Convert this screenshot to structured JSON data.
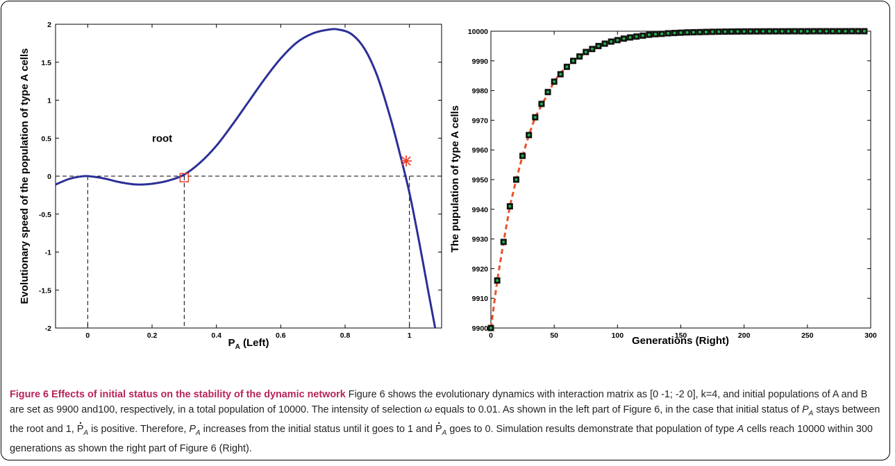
{
  "chart_data": [
    {
      "type": "line",
      "xlabel": "P",
      "xlabel_sub": "A",
      "xlabel_suffix": " (Left)",
      "ylabel": "Evolutionary speed of the population of type A cells",
      "xlim": [
        -0.1,
        1.1
      ],
      "ylim": [
        -2,
        2
      ],
      "xticks": [
        "0",
        "0.2",
        "0.4",
        "0.6",
        "0.8",
        "1"
      ],
      "xtick_values": [
        0,
        0.2,
        0.4,
        0.6,
        0.8,
        1
      ],
      "yticks": [
        "2",
        "1.5",
        "1",
        "0.5",
        "0",
        "-0.5",
        "-1",
        "-1.5",
        "-2"
      ],
      "ytick_values": [
        2,
        1.5,
        1,
        0.5,
        0,
        -0.5,
        -1,
        -1.5,
        -2
      ],
      "curve": {
        "x": [
          -0.1,
          -0.06,
          -0.03,
          0,
          0.05,
          0.1,
          0.15,
          0.2,
          0.25,
          0.3,
          0.35,
          0.4,
          0.45,
          0.5,
          0.55,
          0.6,
          0.65,
          0.7,
          0.75,
          0.78,
          0.82,
          0.86,
          0.9,
          0.94,
          0.97,
          1.0,
          1.03,
          1.06,
          1.08
        ],
        "y": [
          -0.11,
          -0.04,
          -0.01,
          0,
          -0.03,
          -0.08,
          -0.11,
          -0.1,
          -0.06,
          0.02,
          0.18,
          0.4,
          0.68,
          0.98,
          1.28,
          1.55,
          1.76,
          1.88,
          1.93,
          1.93,
          1.87,
          1.68,
          1.32,
          0.78,
          0.3,
          -0.22,
          -0.86,
          -1.55,
          -2.0
        ],
        "color": "#2b2f97"
      },
      "markers": [
        {
          "type": "square",
          "x": 0.3,
          "y": -0.02,
          "color": "#e8412a"
        },
        {
          "type": "star",
          "x": 0.99,
          "y": 0.2,
          "color": "#e8412a"
        }
      ],
      "dashed_vlines": [
        0,
        0.3,
        1
      ],
      "dashed_hline": 0,
      "annotation": {
        "text": "root",
        "x": 0.2,
        "y": 0.45
      }
    },
    {
      "type": "scatter",
      "xlabel": "Generations (Right)",
      "ylabel": "The pupulation of type A cells",
      "xlim": [
        0,
        300
      ],
      "ylim": [
        9900,
        10000
      ],
      "xticks": [
        "0",
        "50",
        "100",
        "150",
        "200",
        "250",
        "300"
      ],
      "xtick_values": [
        0,
        50,
        100,
        150,
        200,
        250,
        300
      ],
      "yticks": [
        "10000",
        "9990",
        "9980",
        "9970",
        "9960",
        "9950",
        "9940",
        "9930",
        "9920",
        "9910",
        "9900"
      ],
      "ytick_values": [
        10000,
        9990,
        9980,
        9970,
        9960,
        9950,
        9940,
        9930,
        9920,
        9910,
        9900
      ],
      "series": [
        {
          "type": "line-dashed",
          "color": "#e8522a",
          "x": [
            0,
            5,
            10,
            15,
            20,
            25,
            30,
            35,
            40,
            45,
            50,
            55,
            60,
            65,
            70,
            75,
            80,
            90,
            100,
            120,
            140
          ],
          "y": [
            9900,
            9916,
            9929,
            9941,
            9950,
            9958,
            9965,
            9971,
            9975,
            9979,
            9983,
            9986,
            9988,
            9990,
            9991,
            9993,
            9994,
            9996,
            9997,
            9998,
            9999
          ]
        },
        {
          "type": "square-markers",
          "color": "#111111",
          "x": [
            0,
            5,
            10,
            15,
            20,
            25,
            30,
            35,
            40,
            45,
            50,
            55,
            60,
            65,
            70,
            75,
            80,
            85,
            90,
            95,
            100,
            105,
            110,
            115,
            120,
            125,
            130,
            135,
            140,
            145,
            150,
            155,
            160,
            165,
            170,
            175,
            180,
            185,
            190,
            195,
            200,
            205,
            210,
            215,
            220,
            225,
            230,
            235,
            240,
            245,
            250,
            255,
            260,
            265,
            270,
            275,
            280,
            285,
            290,
            295
          ],
          "y": [
            9900,
            9916,
            9929,
            9941,
            9950,
            9958,
            9965,
            9971,
            9975.5,
            9979.5,
            9983,
            9985.5,
            9988,
            9990,
            9991.5,
            9993,
            9994,
            9995,
            9995.8,
            9996.5,
            9997,
            9997.5,
            9997.9,
            9998.2,
            9998.5,
            9998.8,
            9999,
            9999.1,
            9999.3,
            9999.4,
            9999.5,
            9999.6,
            9999.65,
            9999.7,
            9999.75,
            9999.8,
            9999.83,
            9999.86,
            9999.88,
            9999.9,
            9999.92,
            9999.93,
            9999.94,
            9999.95,
            9999.96,
            9999.96,
            9999.97,
            9999.97,
            9999.98,
            9999.98,
            9999.98,
            9999.99,
            9999.99,
            9999.99,
            9999.99,
            9999.99,
            10000,
            10000,
            10000,
            10000
          ]
        },
        {
          "type": "dot-markers",
          "color": "#1fb24a",
          "x": [
            0,
            5,
            10,
            15,
            20,
            25,
            30,
            35,
            40,
            45,
            50,
            55,
            60,
            65,
            70,
            75,
            80,
            85,
            90,
            95,
            100,
            105,
            110,
            115,
            120,
            125,
            130,
            135,
            140,
            145,
            150,
            155,
            160,
            165,
            170,
            175,
            180,
            185,
            190,
            195,
            200,
            205,
            210,
            215,
            220,
            225,
            230,
            235,
            240,
            245,
            250,
            255,
            260,
            265,
            270,
            275,
            280,
            285,
            290,
            295
          ],
          "y": [
            9900,
            9916,
            9929,
            9941,
            9950,
            9958,
            9965,
            9971,
            9975.5,
            9979.5,
            9983,
            9985.5,
            9988,
            9990,
            9991.5,
            9993,
            9994,
            9995,
            9995.8,
            9996.5,
            9997,
            9997.5,
            9997.9,
            9998.2,
            9998.5,
            9998.8,
            9999,
            9999.1,
            9999.3,
            9999.4,
            9999.5,
            9999.6,
            9999.65,
            9999.7,
            9999.75,
            9999.8,
            9999.83,
            9999.86,
            9999.88,
            9999.9,
            9999.92,
            9999.93,
            9999.94,
            9999.95,
            9999.96,
            9999.96,
            9999.97,
            9999.97,
            9999.98,
            9999.98,
            9999.98,
            9999.99,
            9999.99,
            9999.99,
            9999.99,
            9999.99,
            10000,
            10000,
            10000,
            10000
          ]
        }
      ]
    }
  ],
  "caption": {
    "label": "Figure 6",
    "title": "Effects of initial status on the stability of the dynamic network",
    "t1": " Figure 6 shows the evolutionary dynamics with interaction matrix as [0 -1; -2 0], k=4, and initial populations of A and B are set as 9900 and100, respectively, in a total population of 10000. The intensity of selection ",
    "omega": "ω",
    "t2": " equals to 0.01. As shown in the left part of Figure 6, in the case that initial status of ",
    "pa": "P",
    "pa_sub": "A",
    "t3": " stays between the root and 1, ",
    "t4": " is positive. Therefore, ",
    "t5": " increases from the initial status until it goes to 1 and ",
    "t6": " goes to 0. Simulation results demonstrate that population of type ",
    "a_ital": "A",
    "t7": " cells reach 10000 within 300 generations as shown the right part of Figure 6 (Right)."
  }
}
